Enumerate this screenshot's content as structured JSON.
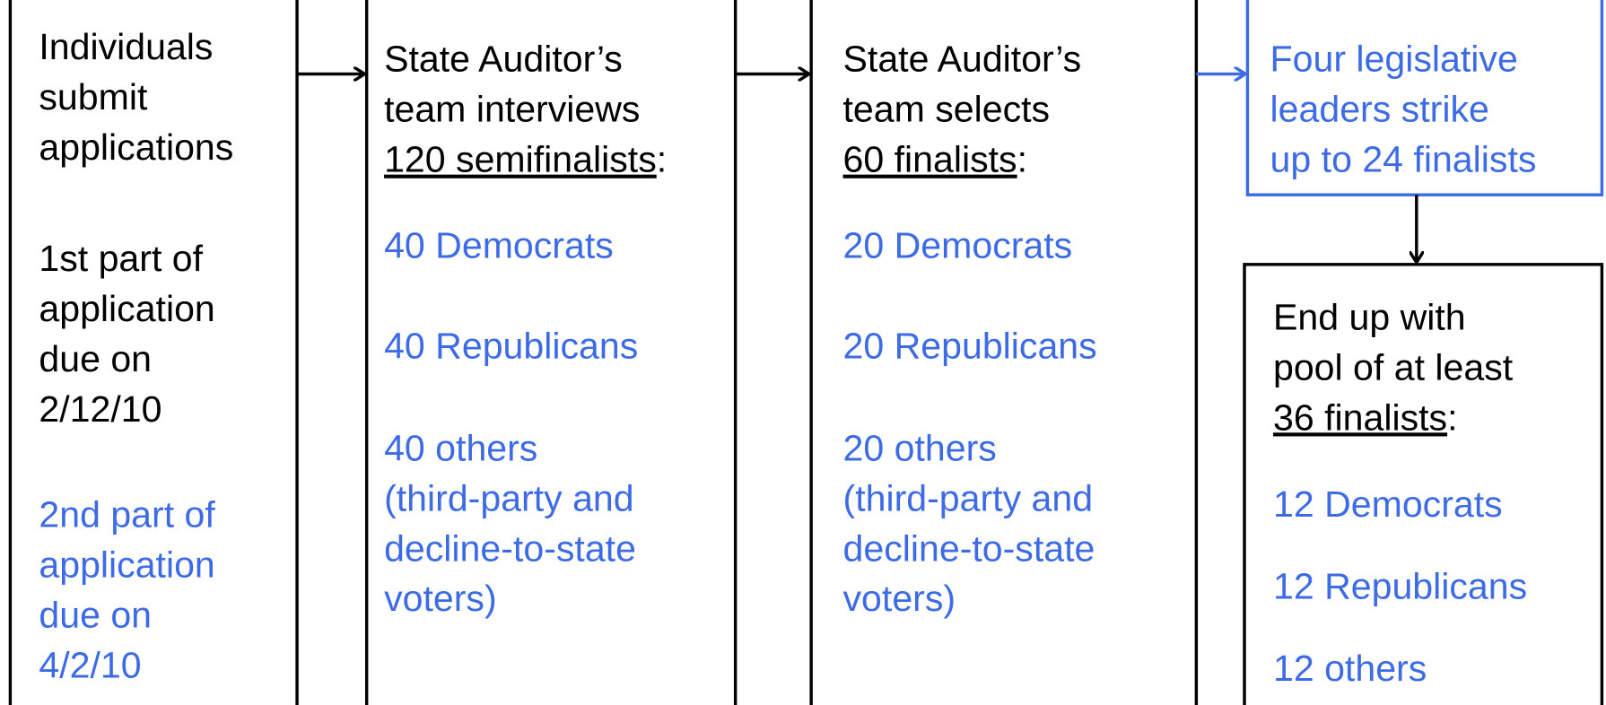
{
  "boxes": [
    {
      "groups": [
        {
          "color": "black",
          "lines": [
            "Individuals",
            "submit",
            "applications"
          ]
        },
        {
          "color": "black",
          "lines": [
            "1st part of",
            "application",
            "due on",
            "2/12/10"
          ]
        },
        {
          "color": "blue",
          "lines": [
            "2nd part of",
            "application",
            "due on",
            "4/2/10"
          ]
        }
      ]
    },
    {
      "groups": [
        {
          "color": "black",
          "lines": [
            "State Auditor’s",
            "team interviews",
            {
              "underlined": "120 semifinalists",
              "rest": ":"
            }
          ]
        },
        {
          "color": "blue",
          "lines": [
            "40 Democrats"
          ]
        },
        {
          "color": "blue",
          "lines": [
            "40 Republicans"
          ]
        },
        {
          "color": "blue",
          "lines": [
            "40 others",
            "(third-party and",
            "decline-to-state",
            "voters)"
          ]
        }
      ]
    },
    {
      "groups": [
        {
          "color": "black",
          "lines": [
            "State Auditor’s",
            "team selects",
            {
              "underlined": "60 finalists",
              "rest": ":"
            }
          ]
        },
        {
          "color": "blue",
          "lines": [
            "20 Democrats"
          ]
        },
        {
          "color": "blue",
          "lines": [
            "20 Republicans"
          ]
        },
        {
          "color": "blue",
          "lines": [
            "20 others",
            "(third-party and",
            "decline-to-state",
            "voters)"
          ]
        }
      ]
    },
    {
      "groups": [
        {
          "color": "blue",
          "lines": [
            "Four legislative",
            "leaders strike",
            "up to 24 finalists"
          ]
        }
      ]
    },
    {
      "groups": [
        {
          "color": "black",
          "lines": [
            "End up with",
            "pool of at least",
            {
              "underlined": "36 finalists",
              "rest": ":"
            }
          ]
        },
        {
          "color": "blue",
          "lines": [
            "12 Democrats"
          ]
        },
        {
          "color": "blue",
          "lines": [
            "12 Republicans"
          ]
        },
        {
          "color": "blue",
          "lines": [
            "12 others"
          ]
        }
      ]
    }
  ]
}
